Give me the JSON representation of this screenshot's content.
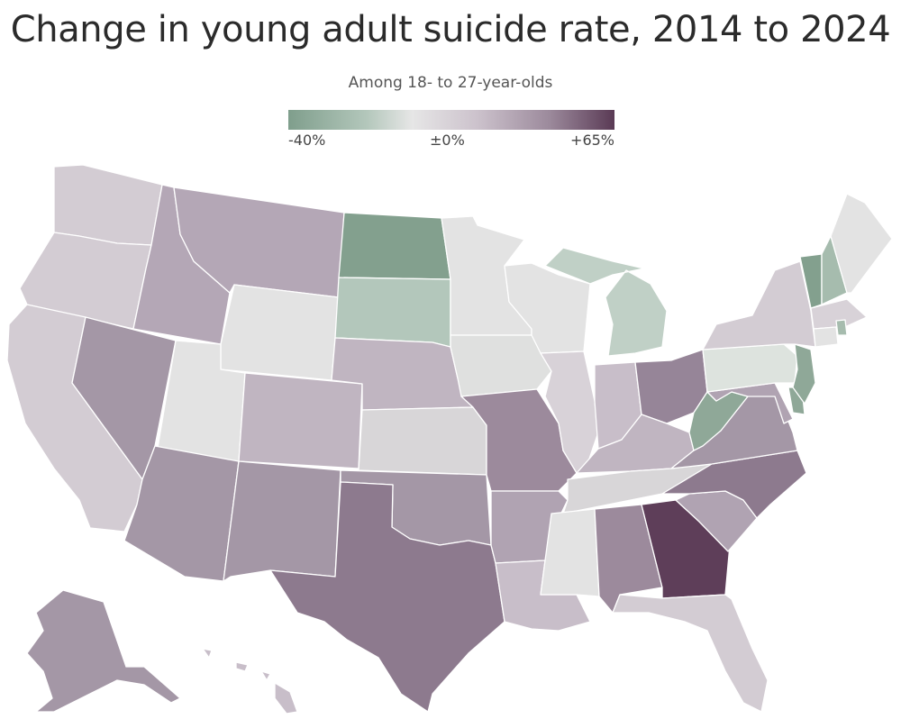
{
  "title": "Change in young adult suicide rate, 2014 to 2024",
  "subtitle": "Among 18- to 27-year-olds",
  "legend": {
    "min_label": "-40%",
    "mid_label": "±0%",
    "max_label": "+65%",
    "min_color": "#7f9e8c",
    "mid_color": "#e6e6e6",
    "max_color": "#5a3a55"
  },
  "state_colors": {
    "WA": "#d3ccd3",
    "OR": "#d3ccd3",
    "CA": "#d3ccd3",
    "ID": "#b4a7b6",
    "NV": "#a497a6",
    "MT": "#b4a7b6",
    "WY": "#e3e3e3",
    "UT": "#e3e3e3",
    "AZ": "#a497a6",
    "CO": "#c0b5c1",
    "NM": "#a497a6",
    "ND": "#83a08e",
    "SD": "#b3c7bb",
    "NE": "#c0b5c1",
    "KS": "#d8d6d8",
    "OK": "#a497a6",
    "TX": "#8d7a8e",
    "MN": "#e3e3e3",
    "IA": "#dfe0df",
    "MO": "#9c8a9c",
    "AR": "#b0a3b2",
    "LA": "#c8bec9",
    "WI": "#e3e3e3",
    "IL": "#d8d2d8",
    "MI": "#c0d0c6",
    "IN": "#c8bec9",
    "OH": "#968598",
    "KY": "#c0b5c1",
    "TN": "#d8d6d8",
    "MS": "#e3e3e3",
    "AL": "#9c8a9c",
    "GA": "#5e3e59",
    "FL": "#d3ccd3",
    "SC": "#b0a3b2",
    "NC": "#8d7a8e",
    "VA": "#a497a6",
    "WV": "#8fa898",
    "MD": "#b0a3b2",
    "DE": "#8fa898",
    "NJ": "#8fa898",
    "PA": "#dde3de",
    "NY": "#d3ccd3",
    "VT": "#83a08e",
    "NH": "#a6bcae",
    "ME": "#e3e3e3",
    "MA": "#d8d2d8",
    "CT": "#e3e3e3",
    "RI": "#a6bcae",
    "AK": "#a497a6",
    "HI": "#c8bec9"
  }
}
